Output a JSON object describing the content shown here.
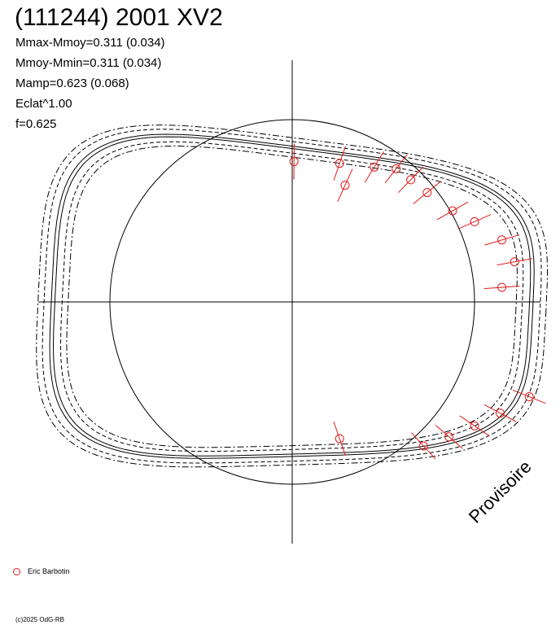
{
  "header": {
    "title": "(111244) 2001 XV2",
    "params": [
      "Mmax-Mmoy=0.311 (0.034)",
      "Mmoy-Mmin=0.311 (0.034)",
      "Mamp=0.623 (0.068)",
      "Eclat^1.00",
      "f=0.625"
    ]
  },
  "legend": {
    "observer": "Eric Barbotin"
  },
  "footer": {
    "credit": "(c)2025 OdG-RB"
  },
  "watermark": "Provisoire",
  "colors": {
    "model": "#000000",
    "observations": "#e31a1c",
    "axes": "#000000"
  },
  "chart_data": {
    "type": "scatter",
    "polar": true,
    "title": "(111244) 2001 XV2",
    "reference_circle": true,
    "model_curves": [
      "solid",
      "dashed",
      "dash-dot"
    ],
    "series": [
      {
        "name": "Eric Barbotin",
        "marker": "open-circle",
        "points": [
          {
            "x": 0.01,
            "y": 0.77
          },
          {
            "x": 0.26,
            "y": 0.76
          },
          {
            "x": 0.45,
            "y": 0.74
          },
          {
            "x": 0.57,
            "y": 0.73
          },
          {
            "x": 0.65,
            "y": 0.67
          },
          {
            "x": 0.29,
            "y": 0.64
          },
          {
            "x": 0.74,
            "y": 0.6
          },
          {
            "x": 0.88,
            "y": 0.5
          },
          {
            "x": 1.0,
            "y": 0.44
          },
          {
            "x": 1.15,
            "y": 0.34
          },
          {
            "x": 1.22,
            "y": 0.22
          },
          {
            "x": 1.15,
            "y": 0.08
          },
          {
            "x": 1.3,
            "y": -0.52
          },
          {
            "x": 1.14,
            "y": -0.61
          },
          {
            "x": 1.0,
            "y": -0.68
          },
          {
            "x": 0.86,
            "y": -0.74
          },
          {
            "x": 0.72,
            "y": -0.79
          },
          {
            "x": 0.26,
            "y": -0.75
          }
        ]
      }
    ]
  }
}
